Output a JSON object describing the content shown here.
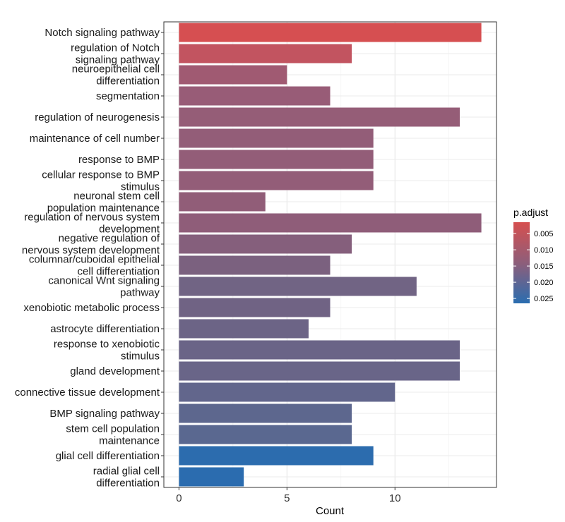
{
  "chart_data": {
    "type": "bar",
    "orientation": "horizontal",
    "xlabel": "Count",
    "ylabel": "",
    "xlim": [
      -0.7,
      14.7
    ],
    "xticks": [
      0,
      5,
      10
    ],
    "grid": true,
    "legend": {
      "title": "p.adjust",
      "position": "right",
      "ticks": [
        0.005,
        0.01,
        0.015,
        0.02,
        0.025
      ],
      "tick_labels": [
        "0.005",
        "0.010",
        "0.015",
        "0.020",
        "0.025"
      ],
      "range": [
        0.0015,
        0.0265
      ],
      "low_color": "#D64F4F",
      "high_color": "#2A6DB0"
    },
    "bars": [
      {
        "lines": [
          "Notch signaling pathway"
        ],
        "value": 14,
        "color": "#D64F51"
      },
      {
        "lines": [
          "regulation of Notch",
          "signaling pathway"
        ],
        "value": 8,
        "color": "#C25460"
      },
      {
        "lines": [
          "neuroepithelial cell",
          "differentiation"
        ],
        "value": 5,
        "color": "#A05A72"
      },
      {
        "lines": [
          "segmentation"
        ],
        "value": 7,
        "color": "#985C77"
      },
      {
        "lines": [
          "regulation of neurogenesis"
        ],
        "value": 13,
        "color": "#955D77"
      },
      {
        "lines": [
          "maintenance of cell number"
        ],
        "value": 9,
        "color": "#935D78"
      },
      {
        "lines": [
          "response to BMP"
        ],
        "value": 9,
        "color": "#935D78"
      },
      {
        "lines": [
          "cellular response to BMP",
          "stimulus"
        ],
        "value": 9,
        "color": "#935D78"
      },
      {
        "lines": [
          "neuronal stem cell",
          "population maintenance"
        ],
        "value": 4,
        "color": "#915D78"
      },
      {
        "lines": [
          "regulation of nervous system",
          "development"
        ],
        "value": 14,
        "color": "#8F5D79"
      },
      {
        "lines": [
          "negative regulation of",
          "nervous system development"
        ],
        "value": 8,
        "color": "#855F7C"
      },
      {
        "lines": [
          "columnar/cuboidal epithelial",
          "cell differentiation"
        ],
        "value": 7,
        "color": "#7B617F"
      },
      {
        "lines": [
          "canonical Wnt signaling",
          "pathway"
        ],
        "value": 11,
        "color": "#716484"
      },
      {
        "lines": [
          "xenobiotic metabolic process"
        ],
        "value": 7,
        "color": "#706384"
      },
      {
        "lines": [
          "astrocyte differentiation"
        ],
        "value": 6,
        "color": "#6C6486"
      },
      {
        "lines": [
          "response to xenobiotic",
          "stimulus"
        ],
        "value": 13,
        "color": "#6A6487"
      },
      {
        "lines": [
          "gland development"
        ],
        "value": 13,
        "color": "#696588"
      },
      {
        "lines": [
          "connective tissue development"
        ],
        "value": 10,
        "color": "#62668C"
      },
      {
        "lines": [
          "BMP signaling pathway"
        ],
        "value": 8,
        "color": "#5D678E"
      },
      {
        "lines": [
          "stem cell population",
          "maintenance"
        ],
        "value": 8,
        "color": "#5A6890"
      },
      {
        "lines": [
          "glial cell differentiation"
        ],
        "value": 9,
        "color": "#2C6CAE"
      },
      {
        "lines": [
          "radial glial cell",
          "differentiation"
        ],
        "value": 3,
        "color": "#2B6CAF"
      }
    ]
  }
}
